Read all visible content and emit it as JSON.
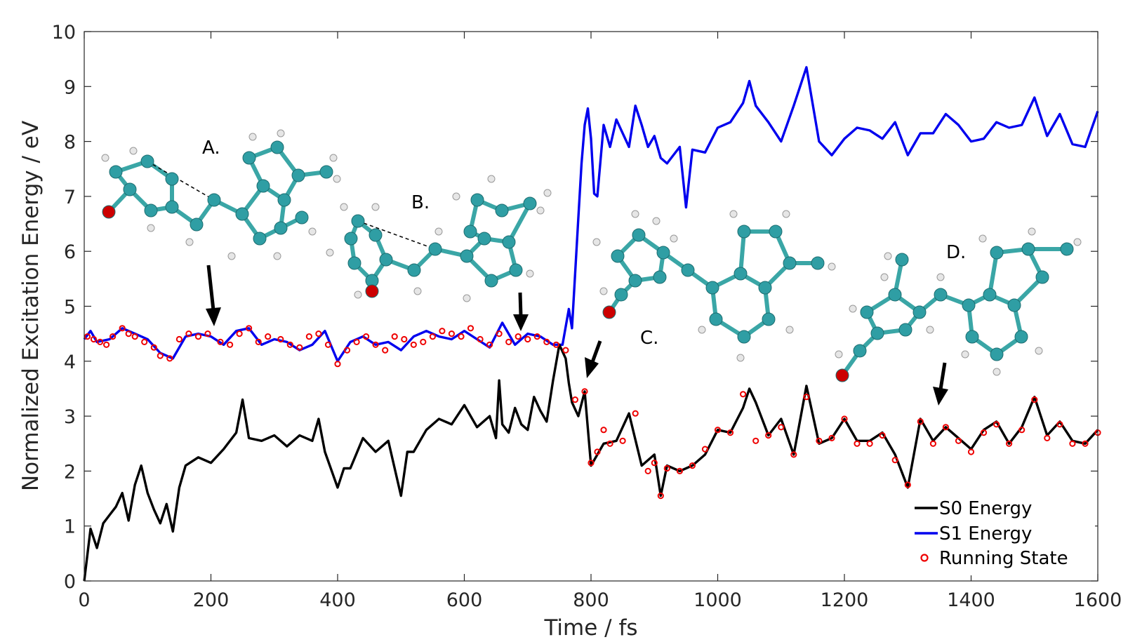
{
  "chart_data": {
    "type": "line",
    "xlabel": "Time / fs",
    "ylabel": "Normalized Excitation Energy / eV",
    "xlim": [
      0,
      1600
    ],
    "ylim": [
      0,
      10
    ],
    "xticks": [
      "0",
      "200",
      "400",
      "600",
      "800",
      "1000",
      "1200",
      "1400",
      "1600"
    ],
    "yticks": [
      "0",
      "1",
      "2",
      "3",
      "4",
      "5",
      "6",
      "7",
      "8",
      "9",
      "10"
    ],
    "grid": false,
    "legend_position": "bottom-right",
    "series": [
      {
        "name": "S0 Energy",
        "color": "#000000",
        "x": [
          0,
          10,
          20,
          30,
          40,
          50,
          60,
          70,
          80,
          90,
          100,
          110,
          120,
          130,
          140,
          150,
          160,
          180,
          200,
          220,
          240,
          250,
          260,
          280,
          300,
          320,
          340,
          360,
          370,
          380,
          400,
          410,
          420,
          440,
          460,
          480,
          500,
          510,
          520,
          540,
          560,
          580,
          600,
          620,
          640,
          650,
          655,
          660,
          670,
          680,
          690,
          700,
          710,
          720,
          730,
          740,
          750,
          760,
          765,
          770,
          780,
          790,
          800,
          820,
          840,
          860,
          880,
          900,
          910,
          920,
          940,
          960,
          980,
          1000,
          1020,
          1040,
          1050,
          1060,
          1080,
          1100,
          1120,
          1140,
          1160,
          1180,
          1200,
          1220,
          1240,
          1260,
          1280,
          1300,
          1320,
          1340,
          1360,
          1380,
          1400,
          1420,
          1440,
          1460,
          1480,
          1500,
          1520,
          1540,
          1560,
          1580,
          1600
        ],
        "values": [
          0.0,
          0.95,
          0.6,
          1.05,
          1.2,
          1.35,
          1.6,
          1.1,
          1.75,
          2.1,
          1.6,
          1.3,
          1.05,
          1.4,
          0.9,
          1.7,
          2.1,
          2.25,
          2.15,
          2.4,
          2.7,
          3.3,
          2.6,
          2.55,
          2.65,
          2.45,
          2.65,
          2.55,
          2.95,
          2.35,
          1.7,
          2.05,
          2.05,
          2.6,
          2.35,
          2.55,
          1.55,
          2.35,
          2.35,
          2.75,
          2.95,
          2.85,
          3.2,
          2.8,
          3.0,
          2.6,
          3.65,
          2.85,
          2.7,
          3.15,
          2.85,
          2.75,
          3.35,
          3.1,
          2.9,
          3.65,
          4.3,
          4.05,
          3.6,
          3.25,
          3.0,
          3.45,
          2.1,
          2.5,
          2.55,
          3.05,
          2.1,
          2.3,
          1.55,
          2.1,
          2.0,
          2.1,
          2.3,
          2.75,
          2.7,
          3.15,
          3.5,
          3.25,
          2.65,
          2.95,
          2.3,
          3.55,
          2.5,
          2.6,
          2.95,
          2.55,
          2.55,
          2.7,
          2.3,
          1.7,
          2.95,
          2.55,
          2.8,
          2.6,
          2.4,
          2.75,
          2.9,
          2.5,
          2.8,
          3.35,
          2.65,
          2.9,
          2.55,
          2.5,
          2.75
        ]
      },
      {
        "name": "S1 Energy",
        "color": "#0000ee",
        "x": [
          0,
          10,
          20,
          40,
          60,
          80,
          100,
          120,
          140,
          160,
          180,
          200,
          220,
          240,
          260,
          280,
          300,
          320,
          340,
          360,
          380,
          400,
          420,
          440,
          460,
          480,
          500,
          520,
          540,
          560,
          580,
          600,
          620,
          640,
          660,
          680,
          700,
          720,
          740,
          755,
          765,
          770,
          775,
          780,
          785,
          790,
          795,
          800,
          805,
          810,
          820,
          830,
          840,
          860,
          870,
          880,
          890,
          900,
          910,
          920,
          940,
          950,
          960,
          980,
          1000,
          1020,
          1040,
          1050,
          1060,
          1080,
          1100,
          1120,
          1140,
          1160,
          1180,
          1200,
          1220,
          1240,
          1260,
          1280,
          1300,
          1320,
          1340,
          1360,
          1380,
          1400,
          1420,
          1440,
          1460,
          1480,
          1500,
          1520,
          1540,
          1560,
          1580,
          1600
        ],
        "values": [
          4.4,
          4.55,
          4.35,
          4.4,
          4.6,
          4.5,
          4.4,
          4.15,
          4.05,
          4.45,
          4.5,
          4.45,
          4.3,
          4.55,
          4.6,
          4.3,
          4.4,
          4.35,
          4.2,
          4.3,
          4.55,
          4.0,
          4.35,
          4.45,
          4.3,
          4.35,
          4.2,
          4.45,
          4.55,
          4.45,
          4.4,
          4.55,
          4.4,
          4.25,
          4.7,
          4.3,
          4.5,
          4.45,
          4.3,
          4.3,
          4.95,
          4.6,
          5.6,
          6.6,
          7.6,
          8.3,
          8.6,
          8.05,
          7.05,
          7.0,
          8.3,
          7.9,
          8.4,
          7.9,
          8.65,
          8.3,
          7.9,
          8.1,
          7.7,
          7.6,
          7.9,
          6.8,
          7.85,
          7.8,
          8.25,
          8.35,
          8.7,
          9.1,
          8.65,
          8.35,
          8.0,
          8.65,
          9.35,
          8.0,
          7.75,
          8.05,
          8.25,
          8.2,
          8.05,
          8.35,
          7.75,
          8.15,
          8.15,
          8.5,
          8.3,
          8.0,
          8.05,
          8.35,
          8.25,
          8.3,
          8.8,
          8.1,
          8.5,
          7.95,
          7.9,
          8.55
        ]
      }
    ],
    "markers": {
      "name": "Running State",
      "color": "#ee0000",
      "x": [
        5,
        15,
        25,
        35,
        45,
        60,
        70,
        80,
        95,
        110,
        120,
        135,
        150,
        165,
        180,
        195,
        215,
        230,
        245,
        260,
        275,
        290,
        310,
        325,
        340,
        355,
        370,
        385,
        400,
        415,
        430,
        445,
        460,
        475,
        490,
        505,
        520,
        535,
        550,
        565,
        580,
        595,
        610,
        625,
        640,
        655,
        670,
        685,
        700,
        715,
        730,
        745,
        760,
        775,
        790,
        800,
        810,
        820,
        830,
        850,
        870,
        890,
        900,
        910,
        920,
        940,
        960,
        980,
        1000,
        1020,
        1040,
        1060,
        1080,
        1100,
        1120,
        1140,
        1160,
        1180,
        1200,
        1220,
        1240,
        1260,
        1280,
        1300,
        1320,
        1340,
        1360,
        1380,
        1400,
        1420,
        1440,
        1460,
        1480,
        1500,
        1520,
        1540,
        1560,
        1580,
        1600
      ],
      "values": [
        4.45,
        4.4,
        4.35,
        4.3,
        4.45,
        4.6,
        4.5,
        4.45,
        4.35,
        4.25,
        4.1,
        4.05,
        4.4,
        4.5,
        4.45,
        4.5,
        4.35,
        4.3,
        4.5,
        4.6,
        4.35,
        4.45,
        4.4,
        4.3,
        4.25,
        4.45,
        4.5,
        4.3,
        3.95,
        4.2,
        4.35,
        4.45,
        4.3,
        4.2,
        4.45,
        4.4,
        4.3,
        4.35,
        4.45,
        4.55,
        4.5,
        4.45,
        4.6,
        4.4,
        4.3,
        4.5,
        4.35,
        4.45,
        4.4,
        4.45,
        4.35,
        4.3,
        4.2,
        3.3,
        3.45,
        2.15,
        2.35,
        2.75,
        2.5,
        2.55,
        3.05,
        2.0,
        2.15,
        1.55,
        2.05,
        2.0,
        2.1,
        2.4,
        2.75,
        2.7,
        3.4,
        2.55,
        2.65,
        2.8,
        2.3,
        3.35,
        2.55,
        2.6,
        2.95,
        2.5,
        2.5,
        2.65,
        2.2,
        1.75,
        2.9,
        2.5,
        2.8,
        2.55,
        2.35,
        2.7,
        2.85,
        2.5,
        2.75,
        3.3,
        2.6,
        2.85,
        2.5,
        2.5,
        2.7
      ]
    },
    "annotations": [
      "A.",
      "B.",
      "C.",
      "D."
    ],
    "legend": [
      "S0 Energy",
      "S1 Energy",
      "Running State"
    ]
  }
}
